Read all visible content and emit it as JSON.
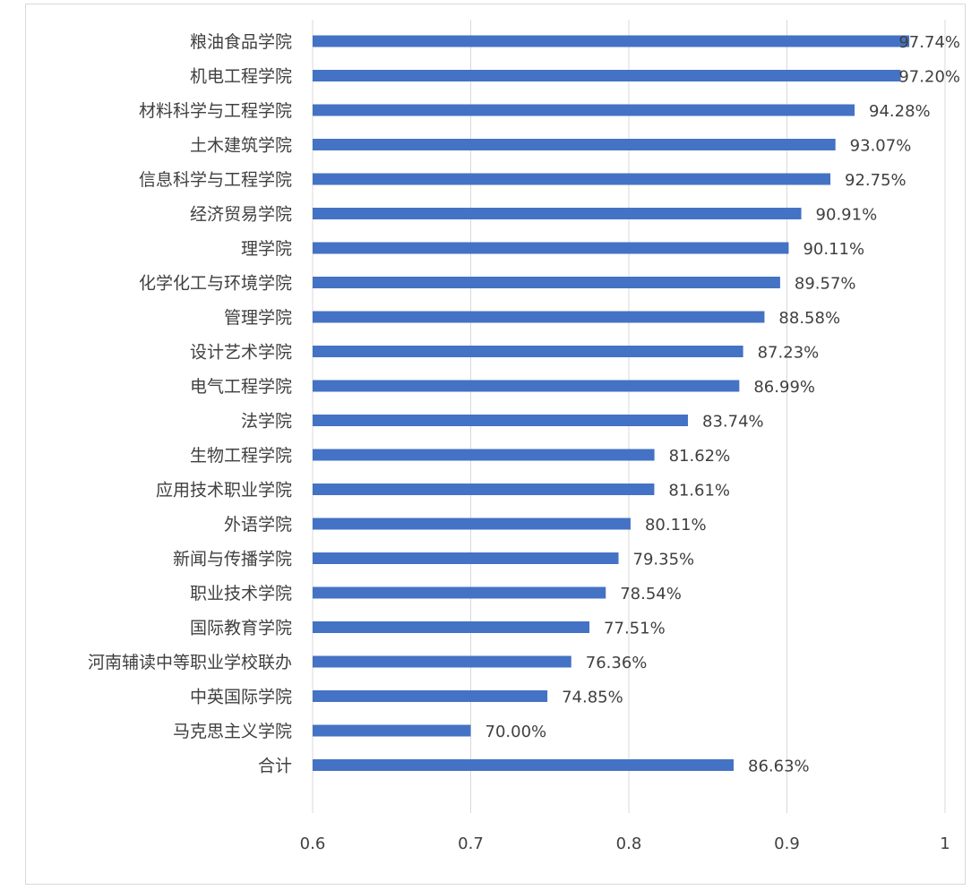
{
  "chart_data": {
    "type": "bar",
    "orientation": "horizontal",
    "categories": [
      "粮油食品学院",
      "机电工程学院",
      "材料科学与工程学院",
      "土木建筑学院",
      "信息科学与工程学院",
      "经济贸易学院",
      "理学院",
      "化学化工与环境学院",
      "管理学院",
      "设计艺术学院",
      "电气工程学院",
      "法学院",
      "生物工程学院",
      "应用技术职业学院",
      "外语学院",
      "新闻与传播学院",
      "职业技术学院",
      "国际教育学院",
      "河南辅读中等职业学校联办",
      "中英国际学院",
      "马克思主义学院",
      "合计"
    ],
    "values": [
      0.9774,
      0.972,
      0.9428,
      0.9307,
      0.9275,
      0.9091,
      0.9011,
      0.8957,
      0.8858,
      0.8723,
      0.8699,
      0.8374,
      0.8162,
      0.8161,
      0.8011,
      0.7935,
      0.7854,
      0.7751,
      0.7636,
      0.7485,
      0.7,
      0.8663
    ],
    "data_labels": [
      "97.74%",
      "97.20%",
      "94.28%",
      "93.07%",
      "92.75%",
      "90.91%",
      "90.11%",
      "89.57%",
      "88.58%",
      "87.23%",
      "86.99%",
      "83.74%",
      "81.62%",
      "81.61%",
      "80.11%",
      "79.35%",
      "78.54%",
      "77.51%",
      "76.36%",
      "74.85%",
      "70.00%",
      "86.63%"
    ],
    "xlim": [
      0.6,
      1.0
    ],
    "x_ticks": [
      0.6,
      0.7,
      0.8,
      0.9,
      1.0
    ],
    "x_tick_labels": [
      "0.6",
      "0.7",
      "0.8",
      "0.9",
      "1"
    ],
    "title": "",
    "xlabel": "",
    "ylabel": "",
    "grid": "vertical",
    "legend": "none",
    "colors": {
      "bar": "#4472c4",
      "grid": "#d9d9d9",
      "text": "#404040"
    }
  }
}
